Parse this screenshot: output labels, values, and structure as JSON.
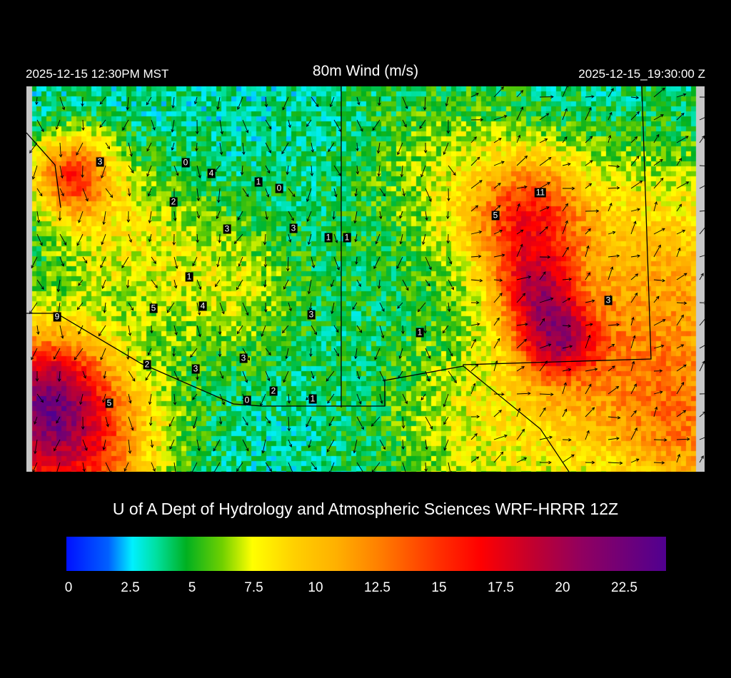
{
  "header": {
    "local_time": "2025-12-15 12:30PM MST",
    "title": "80m Wind (m/s)",
    "utc_time": "2025-12-15_19:30:00 Z"
  },
  "map": {
    "variable": "80m wind speed",
    "units": "m/s",
    "station_values": [
      "3",
      "0",
      "4",
      "1",
      "0",
      "2",
      "3",
      "3",
      "1",
      "1",
      "11",
      "5",
      "1",
      "5",
      "4",
      "3",
      "3",
      "9",
      "1",
      "2",
      "3",
      "3",
      "2",
      "0",
      "1",
      "5"
    ]
  },
  "credit": "U of A Dept of Hydrology and Atmospheric Sciences WRF-HRRR 12Z",
  "colorbar": {
    "range": [
      0,
      24
    ],
    "ticks": [
      "0",
      "2.5",
      "5",
      "7.5",
      "10",
      "12.5",
      "15",
      "17.5",
      "20",
      "22.5"
    ],
    "colors": [
      "#0010ff",
      "#00f0ff",
      "#00b020",
      "#ffff00",
      "#ffb000",
      "#ff3000",
      "#ff0000",
      "#900060",
      "#500090"
    ]
  }
}
